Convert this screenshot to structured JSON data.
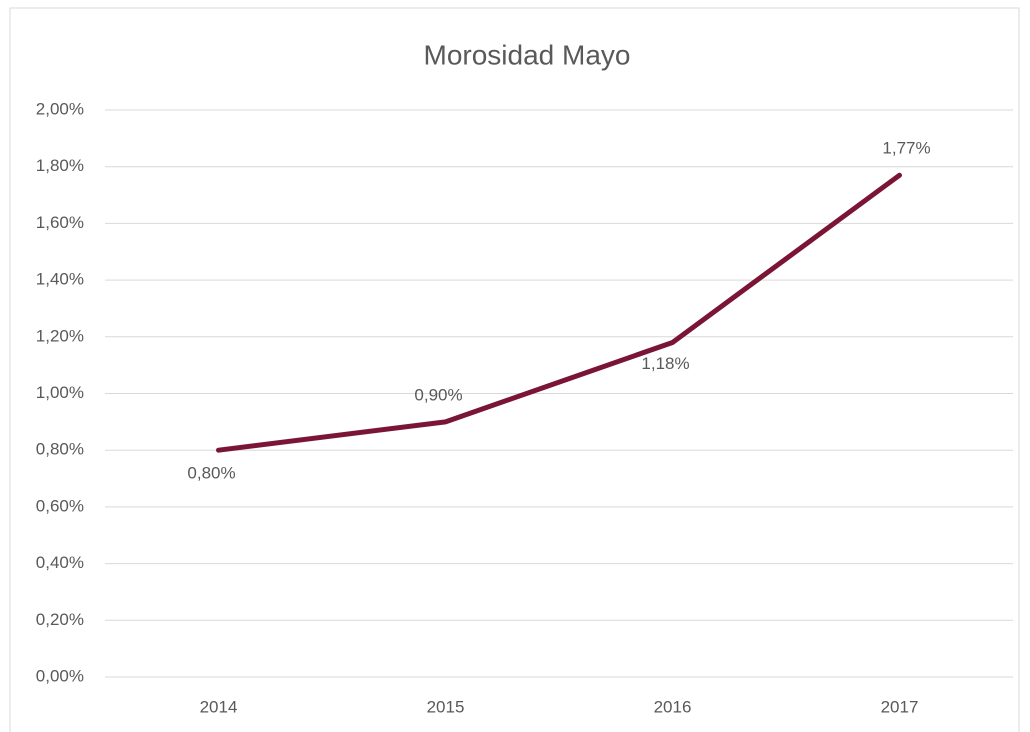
{
  "chart_data": {
    "type": "line",
    "title": "Morosidad Mayo",
    "categories": [
      "2014",
      "2015",
      "2016",
      "2017"
    ],
    "values": [
      0.8,
      0.9,
      1.18,
      1.77
    ],
    "value_labels": [
      "0,80%",
      "0,90%",
      "1,18%",
      "1,77%"
    ],
    "color": "#7b1535",
    "ylim": [
      0,
      2
    ],
    "yticks": [
      {
        "value": 0,
        "label": "0,00%"
      },
      {
        "value": 0.2,
        "label": "0,20%"
      },
      {
        "value": 0.4,
        "label": "0,40%"
      },
      {
        "value": 0.6,
        "label": "0,60%"
      },
      {
        "value": 0.8,
        "label": "0,80%"
      },
      {
        "value": 1.0,
        "label": "1,00%"
      },
      {
        "value": 1.2,
        "label": "1,20%"
      },
      {
        "value": 1.4,
        "label": "1,40%"
      },
      {
        "value": 1.6,
        "label": "1,60%"
      },
      {
        "value": 1.8,
        "label": "1,80%"
      },
      {
        "value": 2.0,
        "label": "2,00%"
      }
    ],
    "grid": true
  }
}
